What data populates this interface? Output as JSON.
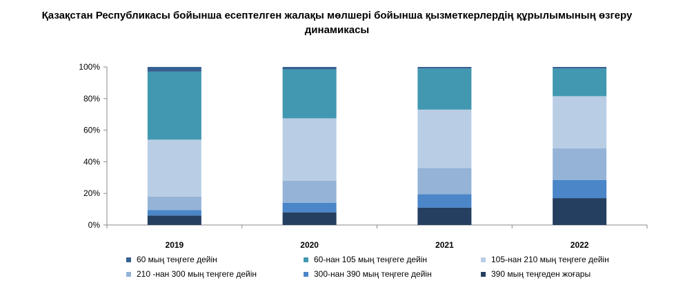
{
  "title": {
    "line1": "Қазақстан Республикасы бойынша есептелген жалақы мөлшері бойынша қызметкерлердің құрылымының өзгеру",
    "line2": "динамикасы"
  },
  "chart_data": {
    "type": "bar",
    "stacked": true,
    "percent": true,
    "categories": [
      "2019",
      "2020",
      "2021",
      "2022"
    ],
    "ylim": [
      0,
      100
    ],
    "yticks": [
      "0%",
      "20%",
      "40%",
      "60%",
      "80%",
      "100%"
    ],
    "grid": false,
    "legend_position": "bottom",
    "series": [
      {
        "name": "390 мың теңгеден жоғары",
        "color": "#243f60",
        "values": [
          6,
          8,
          11,
          17
        ]
      },
      {
        "name": "300-нан  390 мың теңгеге дейін",
        "color": "#4a86c8",
        "values": [
          3.5,
          6,
          8.5,
          11.5
        ]
      },
      {
        "name": "210 -нан 300 мың теңгеге дейін",
        "color": "#95b3d7",
        "values": [
          8.5,
          14,
          16.5,
          20
        ]
      },
      {
        "name": "105-нан 210 мың теңгеге дейін",
        "color": "#b9cde5",
        "values": [
          36,
          39.5,
          37,
          33
        ]
      },
      {
        "name": "60-нан  105 мың теңгеге дейін",
        "color": "#4198b0",
        "values": [
          43,
          31,
          26,
          17.5
        ]
      },
      {
        "name": "60  мың теңгеге дейін",
        "color": "#366092",
        "values": [
          3,
          1.5,
          1,
          1
        ]
      }
    ]
  },
  "legend_order": [
    5,
    4,
    3,
    2,
    1,
    0
  ]
}
